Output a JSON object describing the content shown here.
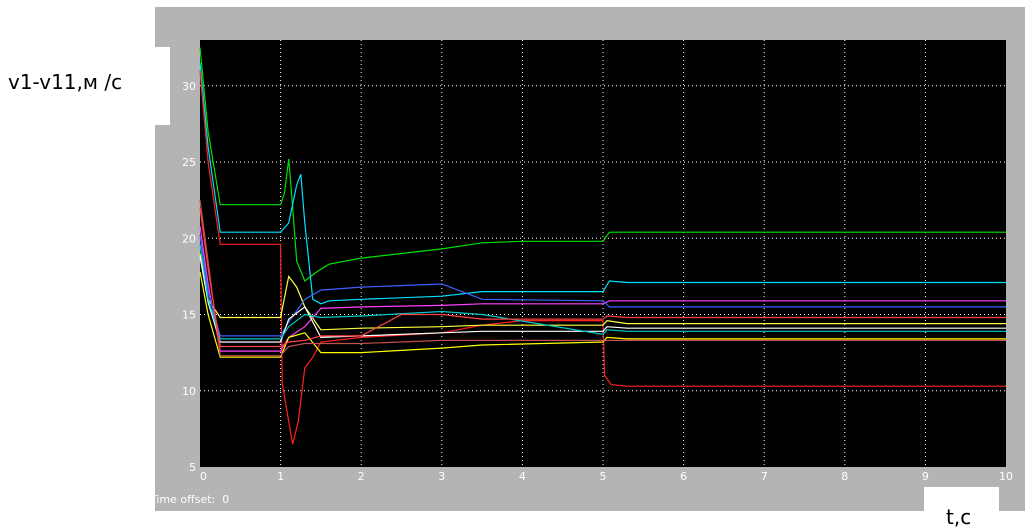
{
  "chart_data": {
    "type": "line",
    "xlabel": "t,c",
    "ylabel": "v1-v11,м /с",
    "xlim": [
      0,
      10
    ],
    "ylim": [
      5,
      33
    ],
    "x_ticks": [
      "0",
      "1",
      "2",
      "3",
      "4",
      "5",
      "6",
      "7",
      "8",
      "9",
      "10"
    ],
    "y_ticks": [
      "5",
      "10",
      "15",
      "20",
      "25",
      "30"
    ],
    "grid": true,
    "time_offset_label": "Time offset:  0",
    "series": [
      {
        "color": "#00e000",
        "points": [
          [
            0,
            32.5
          ],
          [
            0.1,
            27
          ],
          [
            0.25,
            22.2
          ],
          [
            0.5,
            22.2
          ],
          [
            1.0,
            22.2
          ],
          [
            1.05,
            23
          ],
          [
            1.1,
            25.2
          ],
          [
            1.15,
            22
          ],
          [
            1.2,
            18.5
          ],
          [
            1.3,
            17.2
          ],
          [
            1.45,
            17.8
          ],
          [
            1.6,
            18.3
          ],
          [
            2.0,
            18.7
          ],
          [
            2.5,
            19.0
          ],
          [
            3.0,
            19.3
          ],
          [
            3.5,
            19.7
          ],
          [
            4.0,
            19.8
          ],
          [
            5.0,
            19.8
          ],
          [
            5.08,
            20.4
          ],
          [
            5.3,
            20.4
          ],
          [
            10,
            20.4
          ]
        ]
      },
      {
        "color": "#00e0ff",
        "points": [
          [
            0,
            31.5
          ],
          [
            0.1,
            26
          ],
          [
            0.25,
            20.4
          ],
          [
            0.5,
            20.4
          ],
          [
            1.0,
            20.4
          ],
          [
            1.1,
            21
          ],
          [
            1.2,
            23.5
          ],
          [
            1.25,
            24.2
          ],
          [
            1.3,
            21
          ],
          [
            1.4,
            16
          ],
          [
            1.5,
            15.7
          ],
          [
            1.6,
            15.9
          ],
          [
            2.0,
            16
          ],
          [
            3.0,
            16.2
          ],
          [
            3.5,
            16.5
          ],
          [
            5.0,
            16.5
          ],
          [
            5.08,
            17.2
          ],
          [
            5.3,
            17.1
          ],
          [
            10,
            17.1
          ]
        ]
      },
      {
        "color": "#ff2020",
        "points": [
          [
            0,
            31.0
          ],
          [
            0.1,
            25
          ],
          [
            0.25,
            19.6
          ],
          [
            0.5,
            19.6
          ],
          [
            1.0,
            19.6
          ],
          [
            1.02,
            10.5
          ],
          [
            1.1,
            8
          ],
          [
            1.15,
            6.5
          ],
          [
            1.22,
            8
          ],
          [
            1.3,
            11.5
          ],
          [
            1.4,
            12.2
          ],
          [
            1.5,
            13.2
          ],
          [
            2.0,
            13.5
          ],
          [
            3.0,
            13.8
          ],
          [
            3.5,
            14.3
          ],
          [
            4.0,
            14.6
          ],
          [
            5.0,
            14.6
          ],
          [
            5.02,
            11
          ],
          [
            5.1,
            10.4
          ],
          [
            5.3,
            10.3
          ],
          [
            10,
            10.3
          ]
        ]
      },
      {
        "color": "#ffff40",
        "points": [
          [
            0,
            19.0
          ],
          [
            0.1,
            16
          ],
          [
            0.25,
            14.8
          ],
          [
            1.0,
            14.8
          ],
          [
            1.1,
            17.5
          ],
          [
            1.2,
            16.8
          ],
          [
            1.3,
            15.5
          ],
          [
            1.5,
            14
          ],
          [
            2.0,
            14.1
          ],
          [
            3.0,
            14.2
          ],
          [
            3.5,
            14.3
          ],
          [
            5.0,
            14.3
          ],
          [
            5.05,
            14.6
          ],
          [
            5.3,
            14.4
          ],
          [
            10,
            14.4
          ]
        ]
      },
      {
        "color": "#ff40ff",
        "points": [
          [
            0,
            20.8
          ],
          [
            0.1,
            17
          ],
          [
            0.25,
            12.6
          ],
          [
            1.0,
            12.6
          ],
          [
            1.1,
            13.5
          ],
          [
            1.3,
            14.2
          ],
          [
            1.5,
            15.4
          ],
          [
            2.0,
            15.5
          ],
          [
            3.0,
            15.6
          ],
          [
            3.5,
            15.7
          ],
          [
            5.0,
            15.7
          ],
          [
            5.08,
            15.9
          ],
          [
            5.3,
            15.9
          ],
          [
            10,
            15.9
          ]
        ]
      },
      {
        "color": "#4060ff",
        "points": [
          [
            0,
            20.2
          ],
          [
            0.1,
            16.5
          ],
          [
            0.25,
            13.6
          ],
          [
            1.0,
            13.6
          ],
          [
            1.1,
            14.5
          ],
          [
            1.3,
            16
          ],
          [
            1.5,
            16.6
          ],
          [
            2.0,
            16.8
          ],
          [
            3.0,
            17.0
          ],
          [
            3.5,
            16.0
          ],
          [
            5.0,
            15.9
          ],
          [
            5.08,
            15.5
          ],
          [
            5.3,
            15.5
          ],
          [
            10,
            15.5
          ]
        ]
      },
      {
        "color": "#ffffff",
        "points": [
          [
            0,
            18.8
          ],
          [
            0.1,
            15.8
          ],
          [
            0.25,
            13.2
          ],
          [
            1.0,
            13.2
          ],
          [
            1.1,
            14.7
          ],
          [
            1.3,
            15.5
          ],
          [
            1.5,
            13.5
          ],
          [
            2.0,
            13.6
          ],
          [
            3.0,
            13.8
          ],
          [
            3.5,
            13.9
          ],
          [
            5.0,
            13.9
          ],
          [
            5.05,
            14.2
          ],
          [
            5.3,
            14.1
          ],
          [
            10,
            14.1
          ]
        ]
      },
      {
        "color": "#ffff00",
        "points": [
          [
            0,
            17.8
          ],
          [
            0.1,
            15
          ],
          [
            0.25,
            12.2
          ],
          [
            1.0,
            12.2
          ],
          [
            1.1,
            13.5
          ],
          [
            1.3,
            13.8
          ],
          [
            1.5,
            12.5
          ],
          [
            2.0,
            12.5
          ],
          [
            3.0,
            12.8
          ],
          [
            3.5,
            13.0
          ],
          [
            5.0,
            13.2
          ],
          [
            5.05,
            13.5
          ],
          [
            5.3,
            13.4
          ],
          [
            10,
            13.4
          ]
        ]
      },
      {
        "color": "#00c8c8",
        "points": [
          [
            0,
            19.6
          ],
          [
            0.1,
            16
          ],
          [
            0.25,
            13.4
          ],
          [
            1.0,
            13.4
          ],
          [
            1.1,
            14.2
          ],
          [
            1.3,
            15
          ],
          [
            1.5,
            14.8
          ],
          [
            2.0,
            14.9
          ],
          [
            3.0,
            15.2
          ],
          [
            3.5,
            15.0
          ],
          [
            5.0,
            13.7
          ],
          [
            5.05,
            14.0
          ],
          [
            5.3,
            13.9
          ],
          [
            10,
            13.9
          ]
        ]
      },
      {
        "color": "#c05050",
        "points": [
          [
            0,
            22.5
          ],
          [
            0.1,
            18.5
          ],
          [
            0.25,
            12.3
          ],
          [
            1.0,
            12.3
          ],
          [
            1.1,
            12.9
          ],
          [
            1.3,
            13.1
          ],
          [
            1.5,
            13.1
          ],
          [
            2.0,
            13.1
          ],
          [
            3.0,
            13.3
          ],
          [
            3.5,
            13.3
          ],
          [
            5.0,
            13.3
          ],
          [
            5.05,
            13.3
          ],
          [
            10,
            13.3
          ]
        ]
      },
      {
        "color": "#ff4040",
        "points": [
          [
            0,
            22.0
          ],
          [
            0.1,
            18
          ],
          [
            0.25,
            12.9
          ],
          [
            1.0,
            12.9
          ],
          [
            1.1,
            13.2
          ],
          [
            1.3,
            13.3
          ],
          [
            1.5,
            13.6
          ],
          [
            2.0,
            13.6
          ],
          [
            2.5,
            15.0
          ],
          [
            3.0,
            15.0
          ],
          [
            3.5,
            14.7
          ],
          [
            5.0,
            14.7
          ],
          [
            5.05,
            14.9
          ],
          [
            5.3,
            14.8
          ],
          [
            10,
            14.8
          ]
        ]
      }
    ]
  }
}
